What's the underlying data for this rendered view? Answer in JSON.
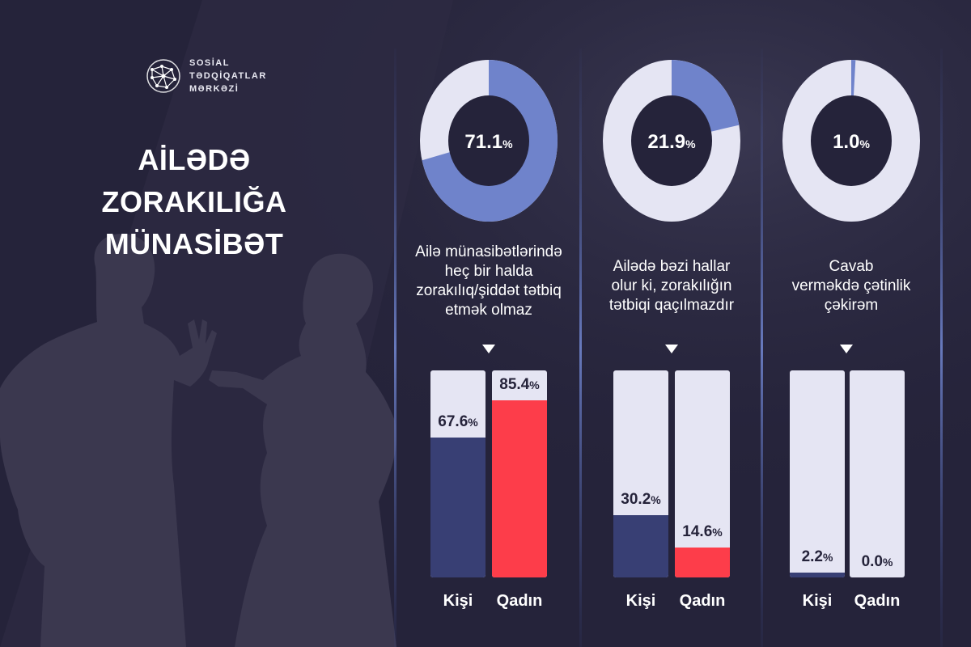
{
  "brand": {
    "logo_lines": [
      "SOSİAL",
      "TƏDQİQATLAR",
      "MƏRKƏZİ"
    ]
  },
  "title_lines": [
    "AİLƏDƏ ZORAKILIĞA",
    "MÜNASİBƏT"
  ],
  "colors": {
    "background": "#25233a",
    "silhouette": "#3b384f",
    "donut_fill": "#6f83cb",
    "donut_track": "#e5e5f3",
    "donut_center": "#25233a",
    "kisi_bar": "#383f74",
    "qadin_bar": "#fd3d4a",
    "bar_track": "#e5e5f3",
    "divider": "#3c4b8e"
  },
  "percent_sign": "%",
  "group_labels": [
    "Kişi",
    "Qadın"
  ],
  "chart_data": [
    {
      "type": "pie",
      "subtype": "donut",
      "categories": [
        "Ailə münasibətlərində heç bir halda zorakılıq/şiddət tətbiq etmək olmaz",
        "Ailədə bəzi hallar olur ki, zorakılığın tətbiqi qaçılmazdır",
        "Cavab verməkdə çətinlik çəkirəm"
      ],
      "values": [
        71.1,
        21.9,
        1.0
      ],
      "value_labels": [
        "71.1",
        "21.9",
        "1.0"
      ]
    },
    {
      "type": "bar",
      "categories": [
        "Kişi",
        "Qadın"
      ],
      "series": [
        {
          "values": [
            67.6,
            85.4
          ],
          "labels": [
            "67.6",
            "85.4"
          ]
        },
        {
          "values": [
            30.2,
            14.6
          ],
          "labels": [
            "30.2",
            "14.6"
          ]
        },
        {
          "values": [
            2.2,
            0.0
          ],
          "labels": [
            "2.2",
            "0.0"
          ]
        }
      ],
      "ylim": [
        0,
        100
      ]
    }
  ],
  "columns": [
    {
      "question_lines": [
        "Ailə münasibətlərində",
        "heç bir halda",
        "zorakılıq/şiddət tətbiq",
        "etmək olmaz"
      ]
    },
    {
      "question_lines": [
        "Ailədə bəzi hallar",
        "olur ki, zorakılığın",
        "tətbiqi qaçılmazdır"
      ]
    },
    {
      "question_lines": [
        "Cavab",
        "verməkdə çətinlik",
        "çəkirəm"
      ]
    }
  ]
}
